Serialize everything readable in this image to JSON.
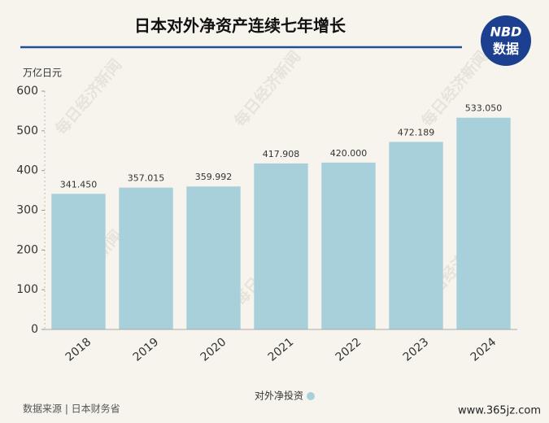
{
  "chart_data": {
    "type": "bar",
    "title": "日本对外净资产连续七年增长",
    "y_label": "万亿日元",
    "categories": [
      "2018",
      "2019",
      "2020",
      "2021",
      "2022",
      "2023",
      "2024"
    ],
    "series": [
      {
        "name": "对外净投资",
        "color": "#a8d0db",
        "values": [
          341.45,
          357.015,
          359.992,
          417.908,
          420,
          472.189,
          533.05
        ],
        "value_labels": [
          "341.450",
          "357.015",
          "359.992",
          "417.908",
          "420.000",
          "472.189",
          "533.050"
        ]
      }
    ],
    "ylim": [
      0,
      600
    ],
    "yticks": [
      0,
      100,
      200,
      300,
      400,
      500,
      600
    ],
    "grid": false,
    "legend": "bottom",
    "source": "数据来源 | 日本财务省",
    "logo": {
      "line1": "NBD",
      "line2": "数据"
    },
    "watermark": "每日经济新闻",
    "site": "www.365jz.com"
  }
}
